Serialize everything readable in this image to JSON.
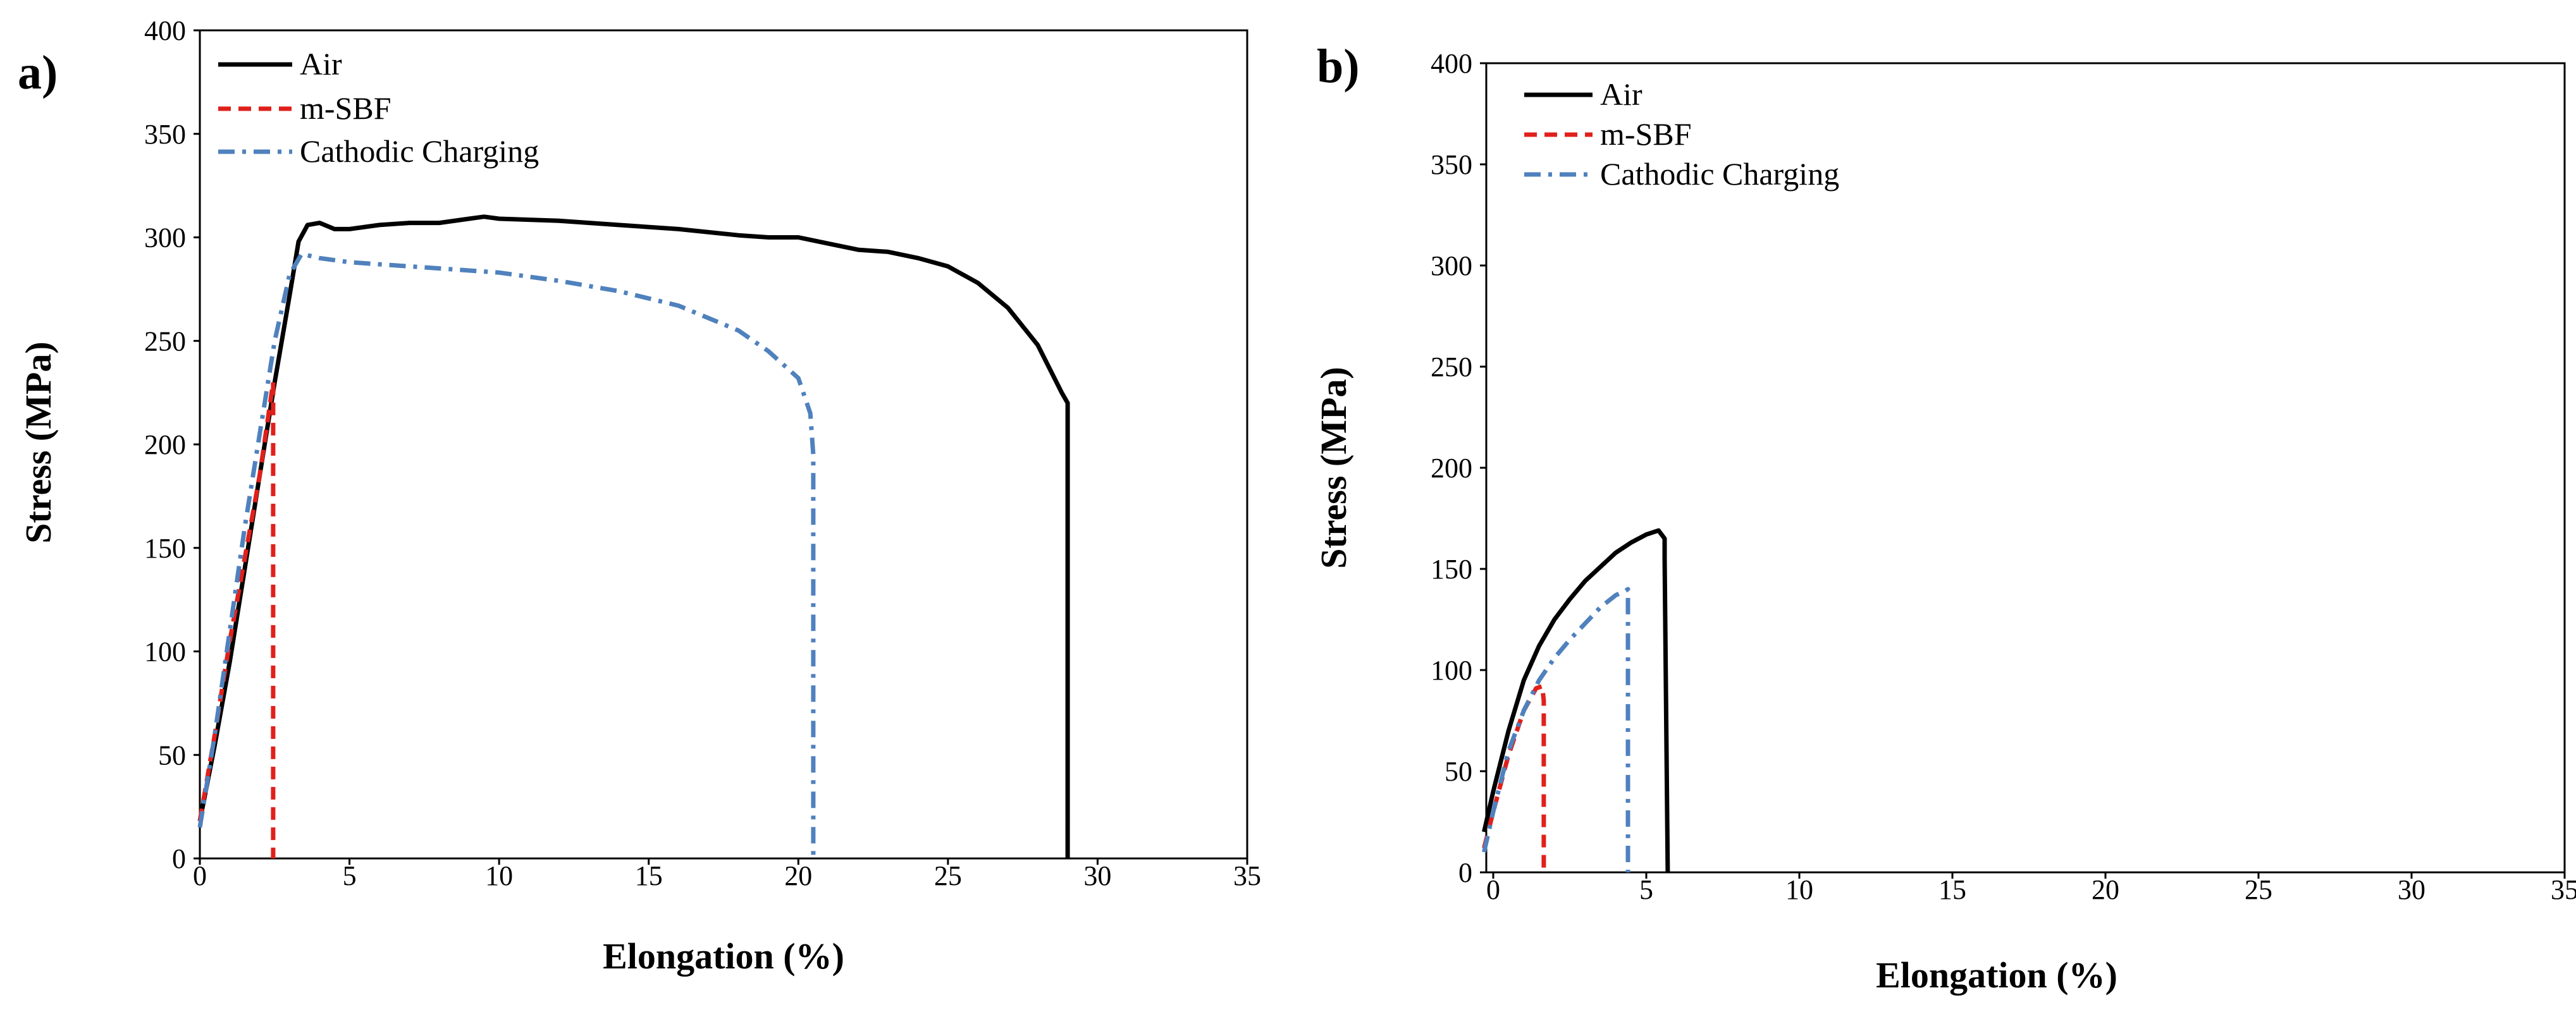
{
  "chart_data": [
    {
      "type": "line",
      "panel_label": "a)",
      "xlabel": "Elongation (%)",
      "ylabel": "Stress (MPa)",
      "xlim": [
        0,
        35
      ],
      "ylim": [
        0,
        400
      ],
      "xticks": [
        0,
        5,
        10,
        15,
        20,
        25,
        30,
        35
      ],
      "yticks": [
        0,
        50,
        100,
        150,
        200,
        250,
        300,
        350,
        400
      ],
      "legend_position": "top-left",
      "series": [
        {
          "name": "Air",
          "color": "#000000",
          "style": "solid",
          "points": [
            [
              0,
              18
            ],
            [
              0.5,
              55
            ],
            [
              1,
              95
            ],
            [
              1.5,
              140
            ],
            [
              2,
              185
            ],
            [
              2.5,
              230
            ],
            [
              3,
              272
            ],
            [
              3.3,
              298
            ],
            [
              3.6,
              306
            ],
            [
              4,
              307
            ],
            [
              4.5,
              304
            ],
            [
              5,
              304
            ],
            [
              6,
              306
            ],
            [
              7,
              307
            ],
            [
              8,
              307
            ],
            [
              9,
              309
            ],
            [
              9.5,
              310
            ],
            [
              10,
              309
            ],
            [
              12,
              308
            ],
            [
              14,
              306
            ],
            [
              16,
              304
            ],
            [
              18,
              301
            ],
            [
              19,
              300
            ],
            [
              20,
              300
            ],
            [
              21,
              297
            ],
            [
              22,
              294
            ],
            [
              23,
              293
            ],
            [
              24,
              290
            ],
            [
              25,
              286
            ],
            [
              26,
              278
            ],
            [
              27,
              266
            ],
            [
              28,
              248
            ],
            [
              28.8,
              225
            ],
            [
              29,
              220
            ],
            [
              29,
              0
            ]
          ]
        },
        {
          "name": "m-SBF",
          "color": "#e0201b",
          "style": "dashed",
          "points": [
            [
              0,
              18
            ],
            [
              0.5,
              60
            ],
            [
              1,
              105
            ],
            [
              1.5,
              145
            ],
            [
              2,
              185
            ],
            [
              2.3,
              215
            ],
            [
              2.45,
              230
            ],
            [
              2.45,
              0
            ]
          ]
        },
        {
          "name": "Cathodic Charging",
          "color": "#4f81bd",
          "style": "dashdot",
          "points": [
            [
              0,
              15
            ],
            [
              0.5,
              60
            ],
            [
              1,
              110
            ],
            [
              1.5,
              160
            ],
            [
              2,
              205
            ],
            [
              2.5,
              250
            ],
            [
              3,
              282
            ],
            [
              3.4,
              292
            ],
            [
              4,
              290
            ],
            [
              5,
              288
            ],
            [
              6,
              287
            ],
            [
              8,
              285
            ],
            [
              10,
              283
            ],
            [
              12,
              279
            ],
            [
              14,
              274
            ],
            [
              16,
              267
            ],
            [
              18,
              255
            ],
            [
              19,
              245
            ],
            [
              20,
              232
            ],
            [
              20.4,
              215
            ],
            [
              20.5,
              195
            ],
            [
              20.5,
              0
            ]
          ]
        }
      ]
    },
    {
      "type": "line",
      "panel_label": "b)",
      "xlabel": "Elongation (%)",
      "ylabel": "Stress (MPa)",
      "xlim": [
        0,
        35
      ],
      "ylim": [
        0,
        400
      ],
      "xticks": [
        0,
        5,
        10,
        15,
        20,
        25,
        30,
        35
      ],
      "yticks": [
        0,
        50,
        100,
        150,
        200,
        250,
        300,
        350,
        400
      ],
      "legend_position": "top-left",
      "series": [
        {
          "name": "Air",
          "color": "#000000",
          "style": "solid",
          "points": [
            [
              -0.3,
              20
            ],
            [
              0,
              40
            ],
            [
              0.5,
              70
            ],
            [
              1,
              95
            ],
            [
              1.5,
              112
            ],
            [
              2,
              125
            ],
            [
              2.5,
              135
            ],
            [
              3,
              144
            ],
            [
              3.5,
              151
            ],
            [
              4,
              158
            ],
            [
              4.5,
              163
            ],
            [
              5,
              167
            ],
            [
              5.4,
              169
            ],
            [
              5.6,
              165
            ],
            [
              5.6,
              155
            ],
            [
              5.7,
              0
            ]
          ]
        },
        {
          "name": "m-SBF",
          "color": "#e0201b",
          "style": "dashed",
          "points": [
            [
              -0.3,
              12
            ],
            [
              0,
              30
            ],
            [
              0.5,
              58
            ],
            [
              1,
              80
            ],
            [
              1.4,
              91
            ],
            [
              1.6,
              92
            ],
            [
              1.65,
              85
            ],
            [
              1.65,
              0
            ]
          ]
        },
        {
          "name": "Cathodic Charging",
          "color": "#4f81bd",
          "style": "dashdot",
          "points": [
            [
              -0.3,
              10
            ],
            [
              0,
              30
            ],
            [
              0.5,
              60
            ],
            [
              1,
              80
            ],
            [
              1.5,
              95
            ],
            [
              2,
              106
            ],
            [
              2.5,
              115
            ],
            [
              3,
              123
            ],
            [
              3.5,
              131
            ],
            [
              4,
              137
            ],
            [
              4.3,
              139
            ],
            [
              4.4,
              140
            ],
            [
              4.4,
              0
            ]
          ]
        }
      ]
    }
  ]
}
